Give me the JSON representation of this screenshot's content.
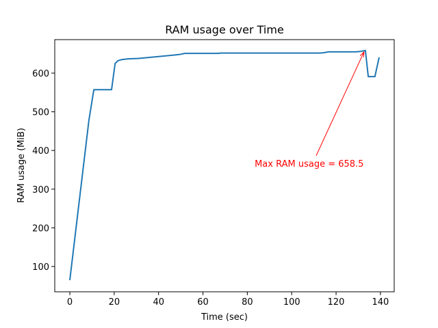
{
  "chart_data": {
    "type": "line",
    "title": "RAM usage over Time",
    "xlabel": "Time (sec)",
    "ylabel": "RAM usage (MiB)",
    "xlim": [
      -6.8,
      146.2
    ],
    "ylim": [
      34.6,
      686.6
    ],
    "xticks": [
      0,
      20,
      40,
      60,
      80,
      100,
      120,
      140
    ],
    "yticks": [
      100,
      200,
      300,
      400,
      500,
      600
    ],
    "grid": false,
    "line_color": "#1f77b4",
    "series": [
      {
        "x": [
          0,
          8.6,
          10.8,
          18.8,
          20.4,
          21.6,
          23.4,
          26.2,
          31,
          40,
          49.3,
          51.8,
          67,
          68,
          113,
          114.7,
          116.6,
          129,
          131,
          133.2,
          134.5,
          137.5,
          139.4
        ],
        "y": [
          64.7,
          478,
          557,
          557,
          625,
          632,
          635,
          637,
          638,
          643,
          648,
          651,
          651,
          652,
          652,
          653,
          655,
          655,
          656,
          658.5,
          591,
          591,
          641
        ]
      }
    ],
    "annotation": {
      "text": "Max RAM usage = 658.5",
      "color": "#ff0000",
      "xy": [
        133.2,
        658.5
      ],
      "xytext": [
        83.3,
        367
      ]
    }
  }
}
